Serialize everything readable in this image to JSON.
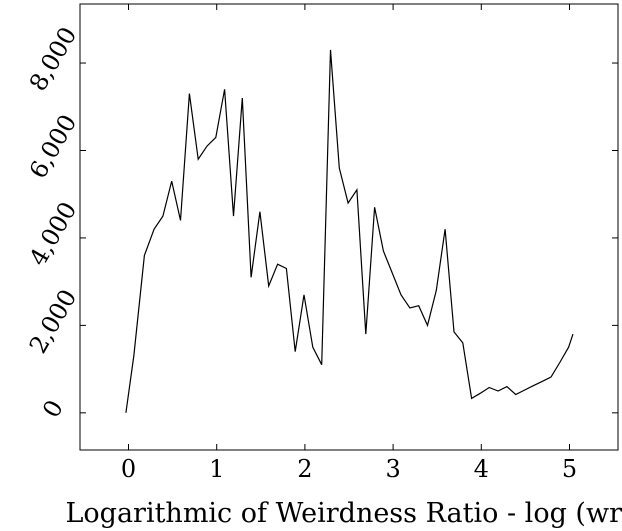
{
  "chart_data": {
    "type": "line",
    "title": "",
    "xlabel": "Logarithmic of Weirdness Ratio - log (wr)",
    "ylabel": "",
    "xlim": [
      -0.55,
      5.55
    ],
    "ylim": [
      -850,
      9350
    ],
    "x_ticks": [
      0,
      1,
      2,
      3,
      4,
      5
    ],
    "x_tick_labels": [
      "0",
      "1",
      "2",
      "3",
      "4",
      "5"
    ],
    "y_ticks": [
      0,
      2000,
      4000,
      6000,
      8000
    ],
    "y_tick_labels": [
      "0",
      "2,000",
      "4,000",
      "6,000",
      "8,000"
    ],
    "grid": false,
    "legend": "none",
    "line_color": "#000000",
    "series": [
      {
        "x": [
          -0.03,
          0.06,
          0.18,
          0.29,
          0.39,
          0.49,
          0.59,
          0.69,
          0.79,
          0.89,
          0.99,
          1.09,
          1.19,
          1.29,
          1.39,
          1.49,
          1.59,
          1.69,
          1.79,
          1.89,
          1.99,
          2.09,
          2.19,
          2.29,
          2.39,
          2.49,
          2.59,
          2.69,
          2.79,
          2.89,
          2.99,
          3.09,
          3.19,
          3.29,
          3.39,
          3.49,
          3.59,
          3.69,
          3.79,
          3.89,
          3.99,
          4.09,
          4.19,
          4.29,
          4.39,
          4.49,
          4.59,
          4.69,
          4.79,
          4.89,
          4.99,
          5.04
        ],
        "y": [
          0,
          1300,
          3600,
          4200,
          4500,
          5300,
          4400,
          7300,
          5800,
          6100,
          6300,
          7400,
          4500,
          7200,
          3100,
          4600,
          2900,
          3400,
          3300,
          1400,
          2700,
          1500,
          1100,
          8300,
          5600,
          4800,
          5100,
          1800,
          4700,
          3700,
          3200,
          2700,
          2400,
          2450,
          2000,
          2800,
          4200,
          1850,
          1600,
          330,
          450,
          580,
          500,
          600,
          420,
          520,
          620,
          720,
          820,
          1150,
          1500,
          1800
        ]
      }
    ]
  }
}
